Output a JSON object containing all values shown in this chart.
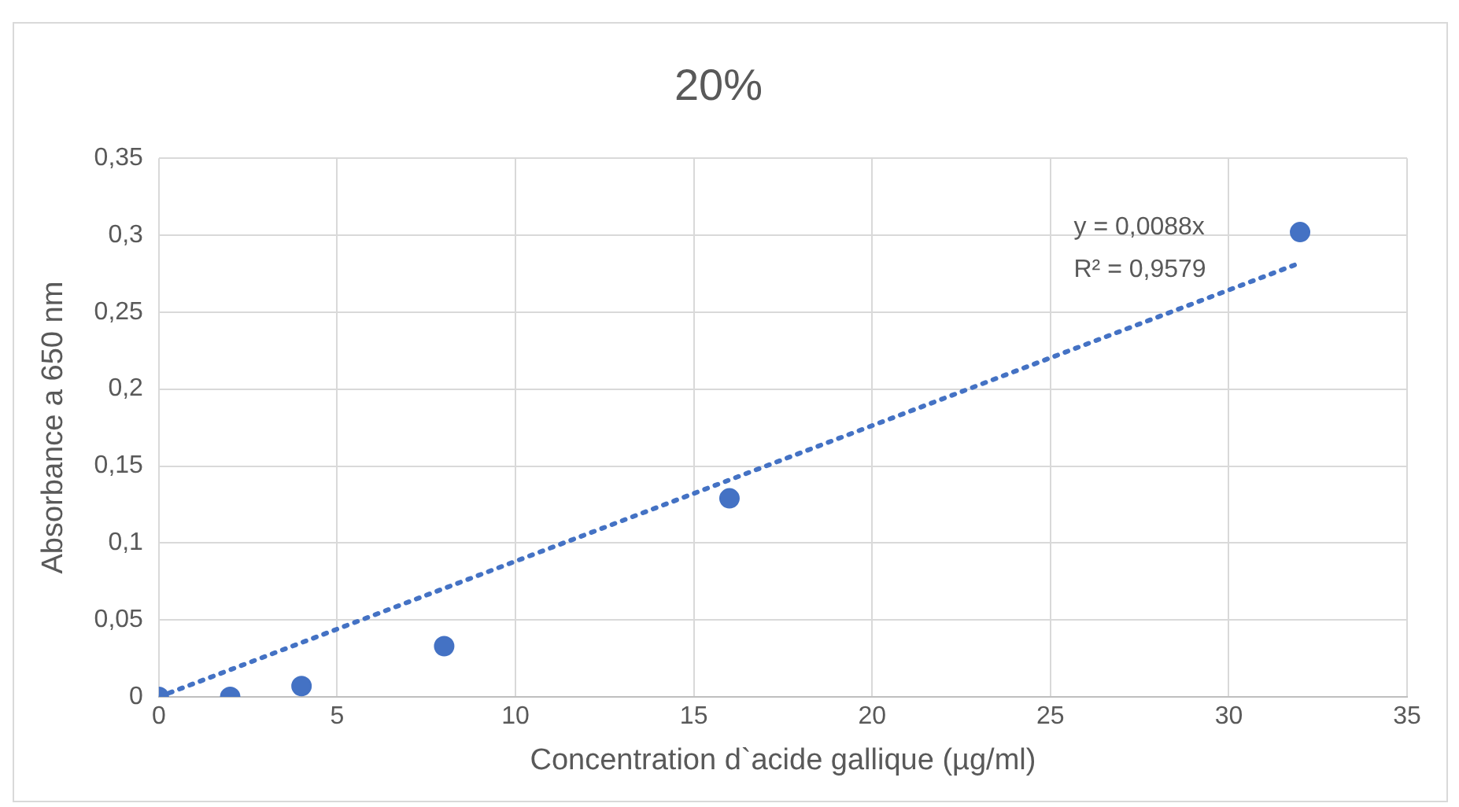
{
  "chart_data": {
    "type": "scatter",
    "title": "20%",
    "xlabel": "Concentration d`acide gallique (µg/ml)",
    "ylabel": "Absorbance a 650 nm",
    "series": [
      {
        "type": "scatter",
        "color": "#4472c4",
        "x": [
          0,
          2,
          4,
          8,
          16,
          32
        ],
        "values": [
          0,
          0,
          0.007,
          0.033,
          0.129,
          0.302
        ],
        "marker": "circle"
      },
      {
        "type": "line",
        "color": "#4472c4",
        "x": [
          0,
          32
        ],
        "values": [
          0,
          0.282
        ],
        "marker": "none",
        "line_style": "dotted"
      }
    ],
    "xlim": [
      0,
      35
    ],
    "xticks": [
      0,
      5,
      10,
      15,
      20,
      25,
      30,
      35
    ],
    "ylim": [
      0,
      0.35
    ],
    "yticks": [
      0,
      {
        "value": 0.05,
        "label": "0,05"
      },
      {
        "value": 0.1,
        "label": "0,1"
      },
      {
        "value": 0.15,
        "label": "0,15"
      },
      {
        "value": 0.2,
        "label": "0,2"
      },
      {
        "value": 0.25,
        "label": "0,25"
      },
      {
        "value": 0.3,
        "label": "0,3"
      },
      {
        "value": 0.35,
        "label": "0,35"
      }
    ],
    "grid": true,
    "legend": false,
    "annotations": [
      "y = 0,0088x",
      "R² = 0,9579"
    ]
  }
}
